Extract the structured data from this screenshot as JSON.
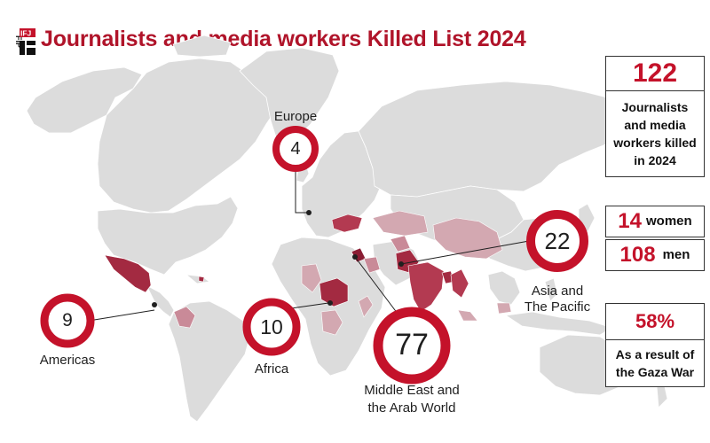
{
  "header": {
    "title": "Journalists and media workers Killed List 2024",
    "logo_text": "IFJ FIP"
  },
  "regions": [
    {
      "id": "europe",
      "label": "Europe",
      "count": "4"
    },
    {
      "id": "americas",
      "label": "Americas",
      "count": "9"
    },
    {
      "id": "africa",
      "label": "Africa",
      "count": "10"
    },
    {
      "id": "middle_east",
      "label": "Middle East and\nthe Arab World",
      "label_line1": "Middle East and",
      "label_line2": "the Arab World",
      "count": "77"
    },
    {
      "id": "asia",
      "label_line1": "Asia and",
      "label_line2": "The Pacific",
      "count": "22"
    }
  ],
  "stats": {
    "total": "122",
    "total_label_lines": [
      "Journalists",
      "and media",
      "workers killed",
      "in 2024"
    ],
    "women_count": "14",
    "women_label": "women",
    "men_count": "108",
    "men_label": "men",
    "gaza_percent": "58%",
    "gaza_label_lines": [
      "As a result of",
      "the Gaza War"
    ]
  },
  "colors": {
    "accent": "#c4122a",
    "land": "#dcdcdc",
    "border": "#ffffff",
    "dark_red": "#9c2035",
    "mid_red": "#b84a5c",
    "light_red": "#d8a9b1"
  }
}
